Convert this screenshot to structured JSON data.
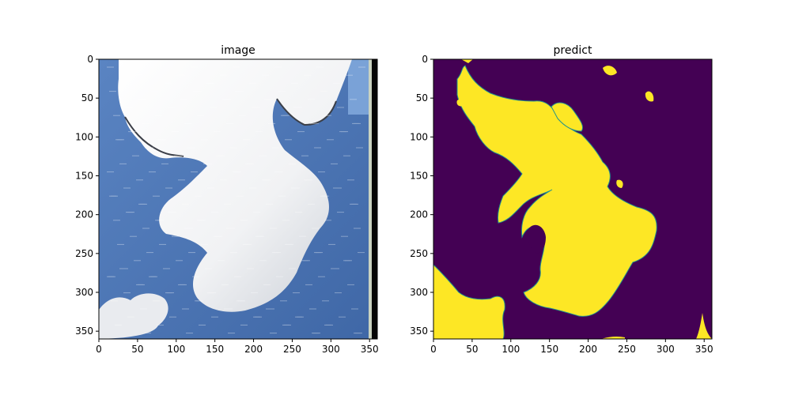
{
  "chart_data": [
    {
      "type": "image",
      "title": "image",
      "xlim": [
        0,
        360
      ],
      "ylim": [
        360,
        0
      ],
      "xticks": [
        0,
        50,
        100,
        150,
        200,
        250,
        300,
        350
      ],
      "yticks": [
        0,
        50,
        100,
        150,
        200,
        250,
        300,
        350
      ],
      "colors": {
        "sky": "#4f78b6",
        "sky_light": "#86aee0",
        "cloud": "#f2f2f2",
        "cloud_shadow": "#c7ccd4",
        "edge_strip": "#050505",
        "edge_strip_light": "#c9d2c0"
      }
    },
    {
      "type": "mask",
      "title": "predict",
      "xlim": [
        0,
        360
      ],
      "ylim": [
        360,
        0
      ],
      "xticks": [
        0,
        50,
        100,
        150,
        200,
        250,
        300,
        350
      ],
      "yticks": [
        0,
        50,
        100,
        150,
        200,
        250,
        300,
        350
      ],
      "colors": {
        "background": "#440154",
        "foreground": "#fde725",
        "edge": "#21918c"
      }
    }
  ]
}
